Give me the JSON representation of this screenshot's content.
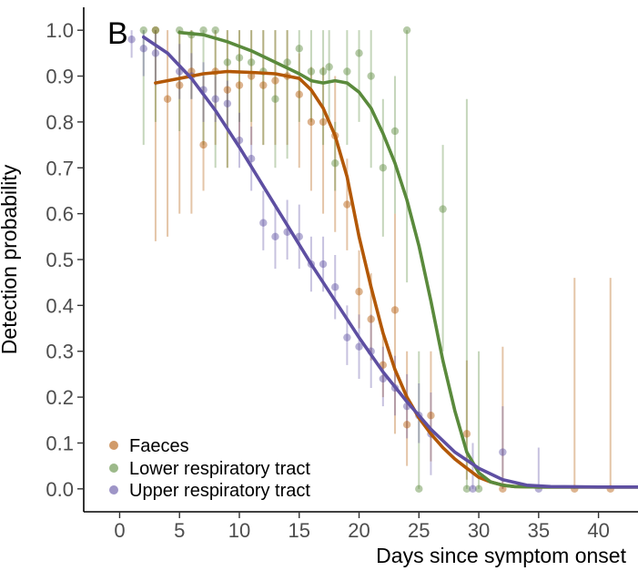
{
  "chart_data": {
    "type": "scatter",
    "panel_label": "B",
    "xlabel": "Days since symptom onset",
    "ylabel": "Detection probability",
    "xlim": [
      -3,
      43.3
    ],
    "ylim": [
      -0.05,
      1.05
    ],
    "xticks": [
      0,
      5,
      10,
      15,
      20,
      25,
      30,
      35,
      40
    ],
    "yticks": [
      0.0,
      0.1,
      0.2,
      0.3,
      0.4,
      0.5,
      0.6,
      0.7,
      0.8,
      0.9,
      1.0
    ],
    "ytick_labels": [
      "0.0",
      "0.1",
      "0.2",
      "0.3",
      "0.4",
      "0.5",
      "0.6",
      "0.7",
      "0.8",
      "0.9",
      "1.0"
    ],
    "grid": false,
    "legend_position": "bottom-left",
    "series": [
      {
        "name": "Faeces",
        "color": "#b35806",
        "points": [
          [
            3,
            1.0,
            0.54,
            1.0
          ],
          [
            4,
            0.85,
            0.55,
            1.0
          ],
          [
            5,
            0.88,
            0.6,
            1.0
          ],
          [
            6,
            0.91,
            0.6,
            1.0
          ],
          [
            7,
            0.75,
            0.65,
            0.9
          ],
          [
            8,
            0.91,
            0.75,
            1.0
          ],
          [
            9,
            0.87,
            0.7,
            1.0
          ],
          [
            10,
            0.88,
            0.75,
            1.0
          ],
          [
            11,
            0.9,
            0.75,
            1.0
          ],
          [
            12,
            0.88,
            0.75,
            1.0
          ],
          [
            13,
            0.89,
            0.75,
            1.0
          ],
          [
            14,
            0.9,
            0.75,
            1.0
          ],
          [
            15,
            0.86,
            0.7,
            0.95
          ],
          [
            16,
            0.8,
            0.65,
            0.92
          ],
          [
            17,
            0.8,
            0.6,
            0.92
          ],
          [
            18,
            0.77,
            0.56,
            0.9
          ],
          [
            19,
            0.62,
            0.52,
            0.72
          ],
          [
            20,
            0.43,
            0.35,
            0.52
          ],
          [
            21,
            0.37,
            0.28,
            0.47
          ],
          [
            22,
            0.27,
            0.2,
            0.35
          ],
          [
            23,
            0.39,
            0.12,
            0.6
          ],
          [
            24,
            0.14,
            0.05,
            0.3
          ],
          [
            26,
            0.16,
            0.06,
            0.3
          ],
          [
            29,
            0.12,
            0.02,
            0.28
          ],
          [
            32,
            0.0,
            0.0,
            0.31
          ],
          [
            38,
            0.0,
            0.0,
            0.46
          ],
          [
            41,
            0.0,
            0.0,
            0.46
          ]
        ],
        "curve": [
          [
            3,
            0.885
          ],
          [
            5,
            0.895
          ],
          [
            7,
            0.905
          ],
          [
            9,
            0.91
          ],
          [
            11,
            0.908
          ],
          [
            13,
            0.905
          ],
          [
            15,
            0.895
          ],
          [
            16,
            0.87
          ],
          [
            17,
            0.83
          ],
          [
            18,
            0.77
          ],
          [
            19,
            0.68
          ],
          [
            20,
            0.55
          ],
          [
            21,
            0.44
          ],
          [
            22,
            0.34
          ],
          [
            23,
            0.26
          ],
          [
            24,
            0.2
          ],
          [
            25,
            0.155
          ],
          [
            26,
            0.12
          ],
          [
            27,
            0.09
          ],
          [
            28,
            0.065
          ],
          [
            29,
            0.045
          ],
          [
            30,
            0.025
          ],
          [
            31,
            0.015
          ],
          [
            32,
            0.008
          ],
          [
            33,
            0.005
          ],
          [
            35,
            0.004
          ],
          [
            40,
            0.004
          ],
          [
            43.3,
            0.004
          ]
        ]
      },
      {
        "name": "Lower respiratory tract",
        "color": "#5a8a3c",
        "points": [
          [
            2,
            1.0,
            0.75,
            1.0
          ],
          [
            3,
            1.0,
            0.8,
            1.0
          ],
          [
            5,
            1.0,
            0.78,
            1.0
          ],
          [
            6,
            0.99,
            0.85,
            1.0
          ],
          [
            7,
            1.0,
            0.75,
            1.0
          ],
          [
            8,
            1.0,
            0.7,
            1.0
          ],
          [
            9,
            0.93,
            0.7,
            1.0
          ],
          [
            10,
            0.94,
            0.8,
            1.0
          ],
          [
            11,
            0.93,
            0.8,
            1.0
          ],
          [
            12,
            0.91,
            0.75,
            1.0
          ],
          [
            13,
            0.85,
            0.7,
            1.0
          ],
          [
            14,
            0.93,
            0.72,
            1.0
          ],
          [
            15,
            0.96,
            0.8,
            1.0
          ],
          [
            16,
            0.91,
            0.8,
            1.0
          ],
          [
            17,
            0.91,
            0.75,
            1.0
          ],
          [
            17.5,
            0.92,
            0.8,
            1.0
          ],
          [
            18,
            0.71,
            0.65,
            0.8
          ],
          [
            19,
            0.91,
            0.75,
            1.0
          ],
          [
            20,
            0.95,
            0.8,
            1.0
          ],
          [
            21,
            0.9,
            0.7,
            1.0
          ],
          [
            22,
            0.7,
            0.55,
            0.85
          ],
          [
            23,
            0.78,
            0.6,
            0.9
          ],
          [
            24,
            1.0,
            0.45,
            1.0
          ],
          [
            25,
            0.0,
            0.0,
            0.3
          ],
          [
            27,
            0.61,
            0.3,
            0.75
          ],
          [
            29,
            0.0,
            0.0,
            0.85
          ],
          [
            30,
            0.0,
            0.0,
            0.3
          ]
        ],
        "curve": [
          [
            5,
            0.995
          ],
          [
            7,
            0.99
          ],
          [
            9,
            0.975
          ],
          [
            11,
            0.955
          ],
          [
            13,
            0.93
          ],
          [
            15,
            0.905
          ],
          [
            16,
            0.89
          ],
          [
            17,
            0.885
          ],
          [
            18,
            0.89
          ],
          [
            19,
            0.885
          ],
          [
            20,
            0.865
          ],
          [
            21,
            0.83
          ],
          [
            22,
            0.775
          ],
          [
            23,
            0.71
          ],
          [
            24,
            0.63
          ],
          [
            25,
            0.53
          ],
          [
            26,
            0.41
          ],
          [
            27,
            0.28
          ],
          [
            28,
            0.17
          ],
          [
            29,
            0.08
          ],
          [
            30,
            0.035
          ],
          [
            31,
            0.015
          ],
          [
            32,
            0.008
          ],
          [
            33,
            0.005
          ],
          [
            35,
            0.004
          ],
          [
            40,
            0.004
          ],
          [
            43.3,
            0.004
          ]
        ]
      },
      {
        "name": "Upper respiratory tract",
        "color": "#5e4fa2",
        "points": [
          [
            1,
            0.98,
            0.94,
            1.0
          ],
          [
            2,
            0.96,
            0.9,
            1.0
          ],
          [
            3,
            0.95,
            0.88,
            1.0
          ],
          [
            5,
            0.91,
            0.85,
            0.97
          ],
          [
            6,
            0.9,
            0.85,
            0.95
          ],
          [
            7,
            0.87,
            0.8,
            0.93
          ],
          [
            8,
            0.85,
            0.8,
            0.9
          ],
          [
            9,
            0.84,
            0.78,
            0.89
          ],
          [
            10,
            0.76,
            0.7,
            0.82
          ],
          [
            11,
            0.72,
            0.65,
            0.79
          ],
          [
            12,
            0.58,
            0.52,
            0.65
          ],
          [
            13,
            0.55,
            0.48,
            0.62
          ],
          [
            14,
            0.56,
            0.5,
            0.63
          ],
          [
            15,
            0.55,
            0.48,
            0.62
          ],
          [
            16,
            0.49,
            0.43,
            0.55
          ],
          [
            17,
            0.49,
            0.43,
            0.55
          ],
          [
            18,
            0.44,
            0.37,
            0.51
          ],
          [
            19,
            0.33,
            0.27,
            0.4
          ],
          [
            20,
            0.31,
            0.24,
            0.38
          ],
          [
            21,
            0.3,
            0.22,
            0.38
          ],
          [
            22,
            0.24,
            0.18,
            0.31
          ],
          [
            23,
            0.22,
            0.16,
            0.29
          ],
          [
            24,
            0.18,
            0.11,
            0.25
          ],
          [
            25,
            0.16,
            0.1,
            0.23
          ],
          [
            26,
            0.12,
            0.03,
            0.21
          ],
          [
            29.5,
            0.0,
            0.0,
            0.1
          ],
          [
            32,
            0.08,
            0.0,
            0.18
          ],
          [
            35,
            0.0,
            0.0,
            0.09
          ]
        ],
        "curve": [
          [
            2,
            0.985
          ],
          [
            4,
            0.95
          ],
          [
            6,
            0.895
          ],
          [
            8,
            0.825
          ],
          [
            10,
            0.745
          ],
          [
            12,
            0.66
          ],
          [
            14,
            0.575
          ],
          [
            16,
            0.49
          ],
          [
            18,
            0.41
          ],
          [
            20,
            0.33
          ],
          [
            22,
            0.255
          ],
          [
            24,
            0.19
          ],
          [
            26,
            0.13
          ],
          [
            28,
            0.08
          ],
          [
            30,
            0.045
          ],
          [
            32,
            0.02
          ],
          [
            34,
            0.008
          ],
          [
            36,
            0.005
          ],
          [
            40,
            0.004
          ],
          [
            43.3,
            0.004
          ]
        ]
      }
    ]
  }
}
